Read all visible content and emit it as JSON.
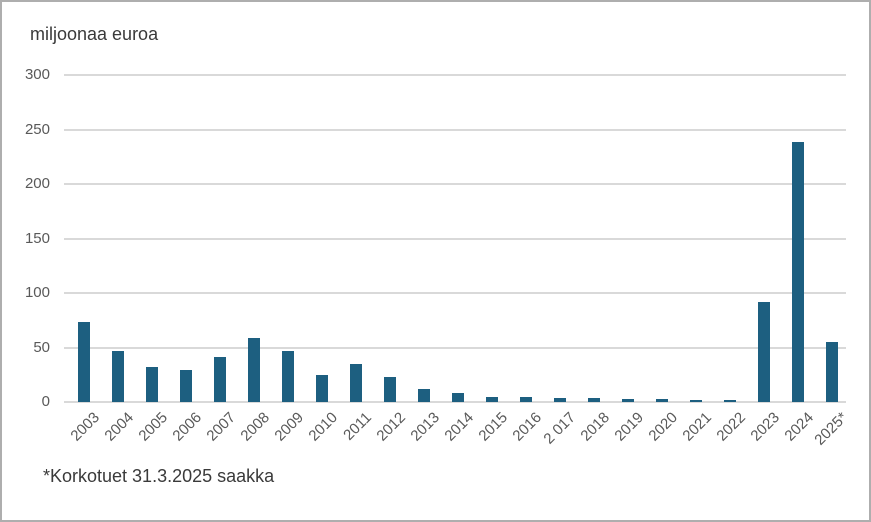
{
  "chart_data": {
    "type": "bar",
    "title": "miljoonaa euroa",
    "footnote": "*Korkotuet 31.3.2025 saakka",
    "categories": [
      "2003",
      "2004",
      "2005",
      "2006",
      "2007",
      "2008",
      "2009",
      "2010",
      "2011",
      "2012",
      "2013",
      "2014",
      "2015",
      "2016",
      "2 017",
      "2018",
      "2019",
      "2020",
      "2021",
      "2022",
      "2023",
      "2024",
      "2025*"
    ],
    "values": [
      73,
      47,
      32,
      29,
      41,
      59,
      47,
      25,
      35,
      23,
      12,
      8,
      5,
      5,
      4,
      4,
      3,
      3,
      2,
      2,
      92,
      239,
      55
    ],
    "xlabel": "",
    "ylabel": "miljoonaa euroa",
    "ylim": [
      0,
      300
    ],
    "yticks": [
      0,
      50,
      100,
      150,
      200,
      250,
      300
    ],
    "grid": "horizontal",
    "legend": "none",
    "colors": {
      "bar": "#1d5f80",
      "gridline": "#d9d9d9",
      "axis_text": "#595959",
      "text": "#3a3a3a",
      "frame_border": "#aeaeae",
      "background": "#ffffff"
    }
  }
}
